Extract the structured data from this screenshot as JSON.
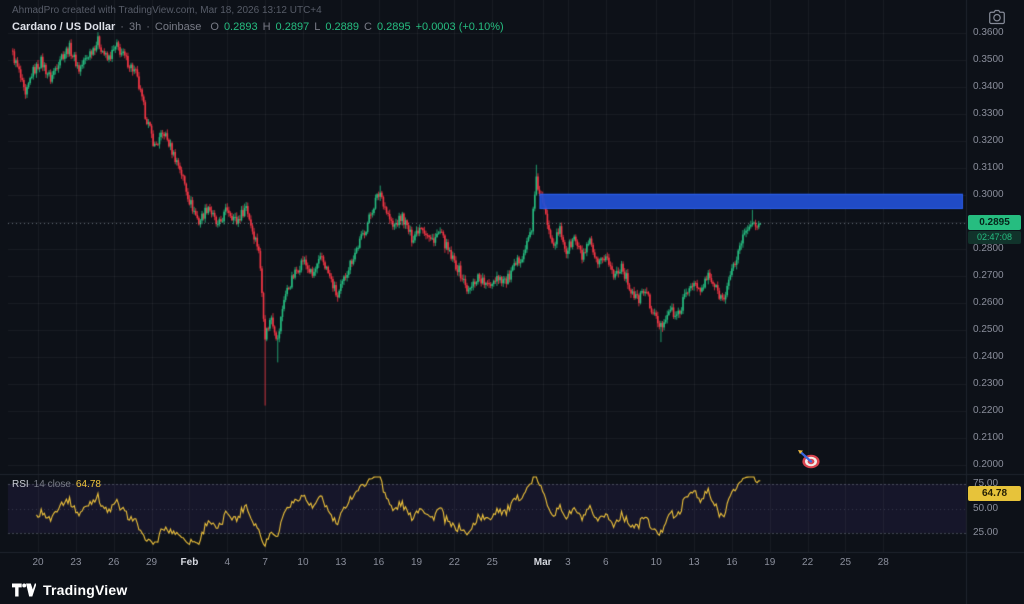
{
  "watermark": "AhmadPro created with TradingView.com, Mar 18, 2026 13:12 UTC+4",
  "legend": {
    "symbol": "Cardano / US Dollar",
    "sep": "·",
    "interval": "3h",
    "exchange": "Coinbase",
    "o_label": "O",
    "o": "0.2893",
    "h_label": "H",
    "h": "0.2897",
    "l_label": "L",
    "l": "0.2889",
    "c_label": "C",
    "c": "0.2895",
    "change": "+0.0003 (+0.10%)"
  },
  "price_axis": {
    "ticks": [
      "0.3600",
      "0.3500",
      "0.3400",
      "0.3300",
      "0.3200",
      "0.3100",
      "0.3000",
      "0.2900",
      "0.2800",
      "0.2700",
      "0.2600",
      "0.2500",
      "0.2400",
      "0.2300",
      "0.2200",
      "0.2100",
      "0.2000"
    ],
    "last_price_label": "0.2895",
    "countdown": "02:47:08"
  },
  "rsi_pane": {
    "title": "RSI",
    "params": "14 close",
    "value_label": "64.78",
    "axis": [
      "75.00",
      "50.00",
      "25.00"
    ]
  },
  "time_axis": {
    "labels": [
      {
        "t": "20",
        "i": 16
      },
      {
        "t": "23",
        "i": 40
      },
      {
        "t": "26",
        "i": 64
      },
      {
        "t": "29",
        "i": 88
      },
      {
        "t": "Feb",
        "i": 112,
        "month": true
      },
      {
        "t": "4",
        "i": 136
      },
      {
        "t": "7",
        "i": 160
      },
      {
        "t": "10",
        "i": 184
      },
      {
        "t": "13",
        "i": 208
      },
      {
        "t": "16",
        "i": 232
      },
      {
        "t": "19",
        "i": 256
      },
      {
        "t": "22",
        "i": 280
      },
      {
        "t": "25",
        "i": 304
      },
      {
        "t": "Mar",
        "i": 336,
        "month": true
      },
      {
        "t": "3",
        "i": 352
      },
      {
        "t": "6",
        "i": 376
      },
      {
        "t": "10",
        "i": 408
      },
      {
        "t": "13",
        "i": 432
      },
      {
        "t": "16",
        "i": 456
      },
      {
        "t": "19",
        "i": 480
      },
      {
        "t": "22",
        "i": 504
      },
      {
        "t": "25",
        "i": 528
      },
      {
        "t": "28",
        "i": 552
      }
    ]
  },
  "footer": {
    "logo_text": "TradingView"
  },
  "icons": {
    "top_right": "camera-icon",
    "chart_sticker": "dart-target-emoji"
  },
  "colors": {
    "background": "#0d1118",
    "up": "#26bd80",
    "down": "#f23645",
    "box": "#2250d4",
    "box_edge": "#2f6bff",
    "rsi_line": "#f0c43c",
    "accent": "#26a69a",
    "axis_text": "#8a8e9b",
    "text": "#d1d4dc",
    "grid": "rgba(255,255,255,0.05)",
    "rsi_band": "rgba(135,95,255,0.08)",
    "separator": "#1f242e",
    "price_line": "rgba(158,168,180,0.6)"
  },
  "chart_data": {
    "type": "candlestick",
    "title": "Cardano / US Dollar · 3h · Coinbase",
    "ylim": [
      0.196,
      0.363
    ],
    "price_gridstep": 0.01,
    "candle_count": 475,
    "ohlc_last": {
      "o": 0.2893,
      "h": 0.2897,
      "l": 0.2889,
      "c": 0.2895
    },
    "price_anchors": [
      [
        0,
        0.352
      ],
      [
        4,
        0.3455
      ],
      [
        8,
        0.336
      ],
      [
        12,
        0.345
      ],
      [
        18,
        0.3495
      ],
      [
        24,
        0.343
      ],
      [
        30,
        0.351
      ],
      [
        36,
        0.3545
      ],
      [
        42,
        0.3465
      ],
      [
        48,
        0.352
      ],
      [
        54,
        0.357
      ],
      [
        60,
        0.35
      ],
      [
        66,
        0.355
      ],
      [
        72,
        0.35
      ],
      [
        78,
        0.345
      ],
      [
        84,
        0.33
      ],
      [
        90,
        0.318
      ],
      [
        96,
        0.323
      ],
      [
        102,
        0.315
      ],
      [
        106,
        0.31
      ],
      [
        112,
        0.298
      ],
      [
        118,
        0.29
      ],
      [
        124,
        0.296
      ],
      [
        130,
        0.288
      ],
      [
        136,
        0.295
      ],
      [
        142,
        0.29
      ],
      [
        148,
        0.296
      ],
      [
        152,
        0.287
      ],
      [
        156,
        0.28
      ],
      [
        160,
        0.248
      ],
      [
        164,
        0.255
      ],
      [
        168,
        0.246
      ],
      [
        172,
        0.262
      ],
      [
        178,
        0.27
      ],
      [
        184,
        0.276
      ],
      [
        190,
        0.27
      ],
      [
        196,
        0.277
      ],
      [
        202,
        0.268
      ],
      [
        206,
        0.262
      ],
      [
        212,
        0.272
      ],
      [
        218,
        0.28
      ],
      [
        224,
        0.288
      ],
      [
        230,
        0.298
      ],
      [
        233,
        0.301
      ],
      [
        237,
        0.294
      ],
      [
        241,
        0.288
      ],
      [
        247,
        0.292
      ],
      [
        253,
        0.284
      ],
      [
        259,
        0.289
      ],
      [
        265,
        0.283
      ],
      [
        271,
        0.286
      ],
      [
        277,
        0.278
      ],
      [
        283,
        0.272
      ],
      [
        289,
        0.264
      ],
      [
        295,
        0.27
      ],
      [
        301,
        0.266
      ],
      [
        307,
        0.27
      ],
      [
        313,
        0.268
      ],
      [
        319,
        0.274
      ],
      [
        325,
        0.28
      ],
      [
        329,
        0.288
      ],
      [
        332,
        0.305
      ],
      [
        335,
        0.299
      ],
      [
        339,
        0.29
      ],
      [
        343,
        0.282
      ],
      [
        347,
        0.287
      ],
      [
        351,
        0.279
      ],
      [
        356,
        0.284
      ],
      [
        361,
        0.277
      ],
      [
        366,
        0.282
      ],
      [
        371,
        0.273
      ],
      [
        376,
        0.278
      ],
      [
        381,
        0.27
      ],
      [
        386,
        0.274
      ],
      [
        391,
        0.266
      ],
      [
        396,
        0.261
      ],
      [
        401,
        0.265
      ],
      [
        406,
        0.256
      ],
      [
        411,
        0.251
      ],
      [
        416,
        0.258
      ],
      [
        421,
        0.2545
      ],
      [
        426,
        0.262
      ],
      [
        431,
        0.268
      ],
      [
        436,
        0.264
      ],
      [
        441,
        0.27
      ],
      [
        446,
        0.265
      ],
      [
        450,
        0.2615
      ],
      [
        454,
        0.268
      ],
      [
        458,
        0.275
      ],
      [
        462,
        0.283
      ],
      [
        466,
        0.288
      ],
      [
        469,
        0.291
      ],
      [
        471,
        0.287
      ],
      [
        474,
        0.2895
      ]
    ],
    "extremes": [
      [
        160,
        "low",
        0.222
      ],
      [
        168,
        "low",
        0.238
      ],
      [
        233,
        "high",
        0.3035
      ],
      [
        332,
        "high",
        0.3112
      ],
      [
        411,
        "low",
        0.2455
      ],
      [
        469,
        "high",
        0.2945
      ]
    ],
    "resistance_zone": {
      "start_index": 334,
      "to_right_edge": true,
      "price_low": 0.2948,
      "price_high": 0.3005
    },
    "last_price": 0.2895,
    "rsi": {
      "period": 14,
      "source": "close",
      "last": 64.78,
      "guides": [
        75,
        50,
        25
      ],
      "range_band": [
        25,
        75
      ]
    }
  }
}
